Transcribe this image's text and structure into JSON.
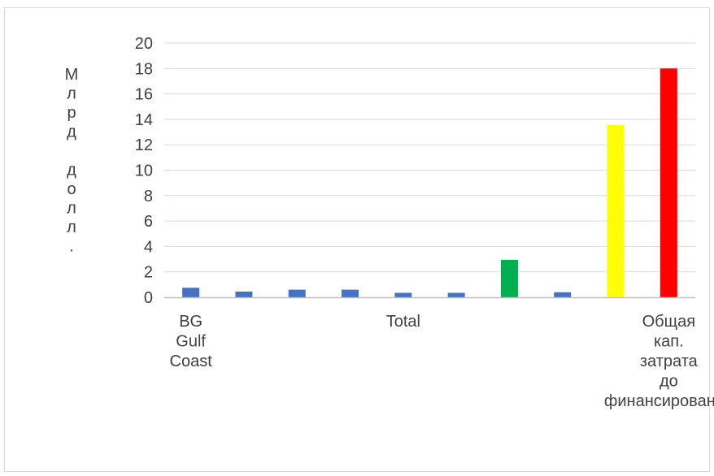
{
  "chart_data": {
    "type": "bar",
    "ylabel": "Млрд долл.",
    "ylim": [
      0,
      20
    ],
    "yticks": [
      0,
      2,
      4,
      6,
      8,
      10,
      12,
      14,
      16,
      18,
      20
    ],
    "grid": true,
    "categories": [
      "BG Gulf Coast",
      "",
      "",
      "",
      "Total",
      "",
      "",
      "",
      "",
      "Общая кап. затрата до финансирования"
    ],
    "category_label_lines": [
      [
        "BG",
        "Gulf",
        "Coast"
      ],
      [],
      [],
      [],
      [
        "Total"
      ],
      [],
      [],
      [],
      [],
      [
        "Общая",
        "кап.",
        "затрата",
        "до",
        "финансирования"
      ]
    ],
    "values": [
      0.75,
      0.45,
      0.6,
      0.6,
      0.35,
      0.35,
      2.95,
      0.4,
      13.55,
      18.0
    ],
    "colors": [
      "#4472c4",
      "#4472c4",
      "#4472c4",
      "#4472c4",
      "#4472c4",
      "#4472c4",
      "#00b050",
      "#4472c4",
      "#ffff00",
      "#ff0000"
    ]
  }
}
